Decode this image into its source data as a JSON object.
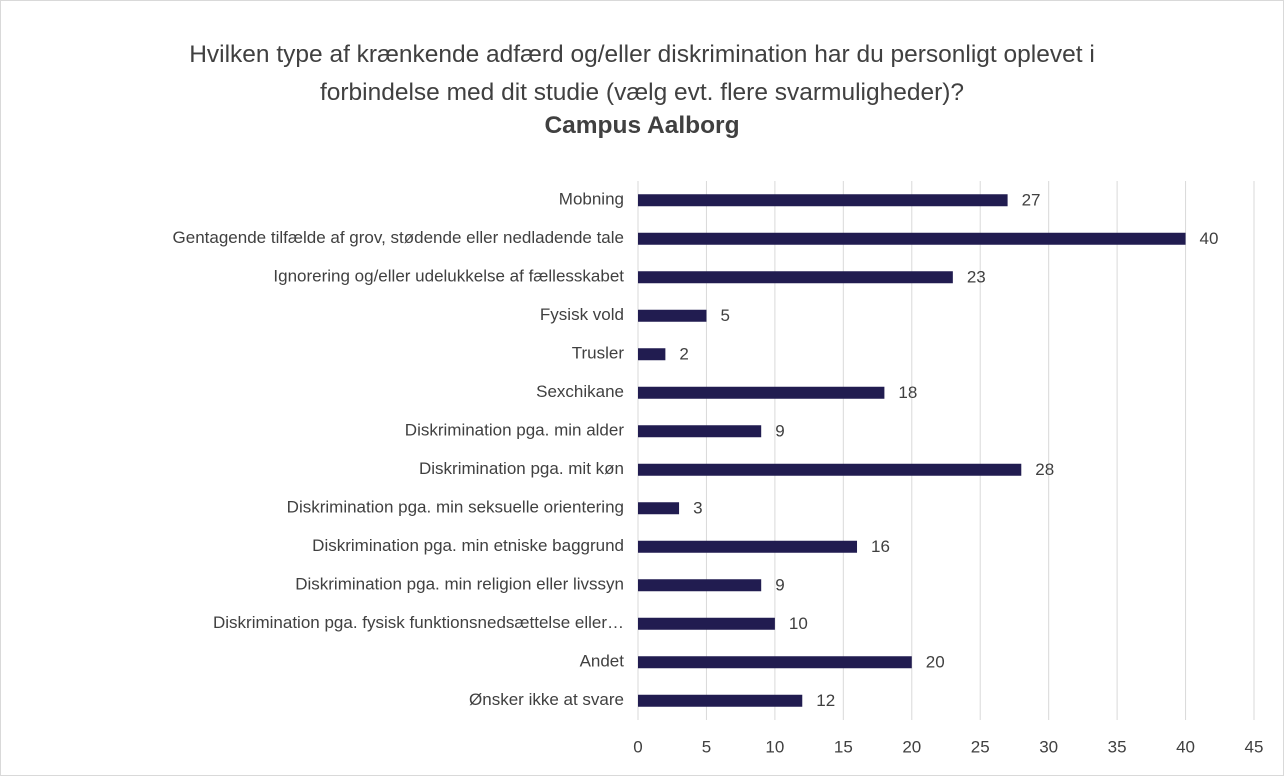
{
  "chart_data": {
    "type": "barh",
    "title": "Hvilken type af krænkende adfærd og/eller diskrimination har du personligt oplevet i forbindelse med dit studie (vælg evt. flere svarmuligheder)?",
    "subtitle": "Campus Aalborg",
    "categories": [
      "Mobning",
      "Gentagende tilfælde af grov, stødende eller nedladende tale",
      "Ignorering og/eller udelukkelse af fællesskabet",
      "Fysisk vold",
      "Trusler",
      "Sexchikane",
      "Diskrimination pga. min alder",
      "Diskrimination pga. mit køn",
      "Diskrimination pga. min seksuelle orientering",
      "Diskrimination pga. min etniske baggrund",
      "Diskrimination pga. min religion eller livssyn",
      "Diskrimination pga. fysisk funktionsnedsættelse eller…",
      "Andet",
      "Ønsker ikke at svare"
    ],
    "values": [
      27,
      40,
      23,
      5,
      2,
      18,
      9,
      28,
      3,
      16,
      9,
      10,
      20,
      12
    ],
    "color": "#211c50",
    "xlim": [
      0,
      45
    ],
    "xticks": [
      0,
      5,
      10,
      15,
      20,
      25,
      30,
      35,
      40,
      45
    ],
    "grid": true
  }
}
